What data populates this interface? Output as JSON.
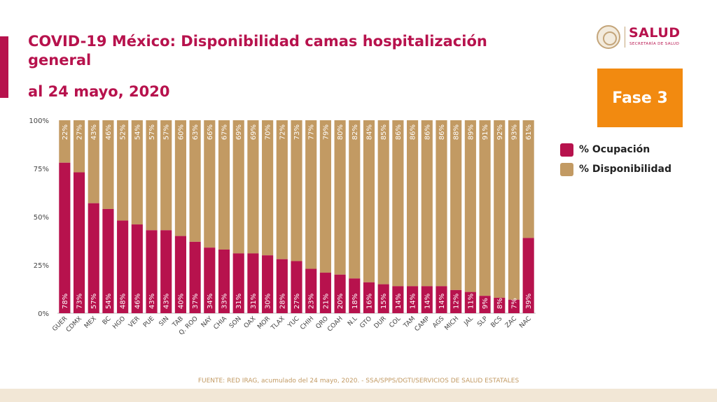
{
  "header": {
    "title": "COVID-19 México: Disponibilidad camas hospitalización general",
    "subtitle": "al 24 mayo, 2020",
    "logo_text": "SALUD",
    "logo_subtext": "SECRETARÍA DE SALUD",
    "badge": "Fase 3"
  },
  "legend": [
    {
      "label": "% Ocupación",
      "color": "#b7124d"
    },
    {
      "label": "% Disponibilidad",
      "color": "#c29a63"
    }
  ],
  "footer": "FUENTE: RED IRAG, acumulado del 24 mayo, 2020. -  SSA/SPPS/DGTI/SERVICIOS DE SALUD ESTATALES",
  "chart_data": {
    "type": "bar",
    "stacked": true,
    "title": "COVID-19 México: Disponibilidad camas hospitalización general",
    "categories": [
      "GUER",
      "CDMX",
      "MEX",
      "BC",
      "HGO",
      "VER",
      "PUE",
      "SIN",
      "TAB",
      "Q. ROO",
      "NAY",
      "CHIA",
      "SON",
      "OAX",
      "MOR",
      "TLAX",
      "YUC",
      "CHIH",
      "QRO",
      "COAH",
      "N.L",
      "GTO",
      "DUR",
      "COL",
      "TAM",
      "CAMP",
      "AGS",
      "MICH",
      "JAL",
      "SLP",
      "BCS",
      "ZAC",
      "NAC"
    ],
    "series": [
      {
        "name": "% Ocupación",
        "color": "#b7124d",
        "values": [
          78,
          73,
          57,
          54,
          48,
          46,
          43,
          43,
          40,
          37,
          34,
          33,
          31,
          31,
          30,
          28,
          27,
          23,
          21,
          20,
          18,
          16,
          15,
          14,
          14,
          14,
          14,
          12,
          11,
          9,
          8,
          7,
          39
        ]
      },
      {
        "name": "% Disponibilidad",
        "color": "#c29a63",
        "values": [
          22,
          27,
          43,
          46,
          52,
          54,
          57,
          57,
          60,
          63,
          66,
          67,
          69,
          69,
          70,
          72,
          73,
          77,
          79,
          80,
          82,
          84,
          85,
          86,
          86,
          86,
          86,
          88,
          89,
          91,
          92,
          93,
          61
        ]
      }
    ],
    "ylim": [
      0,
      100
    ],
    "yticks": [
      "0%",
      "25%",
      "50%",
      "75%",
      "100%"
    ],
    "legend_position": "right"
  }
}
